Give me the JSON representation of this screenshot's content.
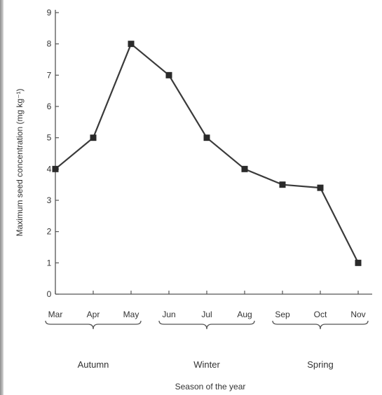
{
  "chart_data": {
    "type": "line",
    "categories": [
      "Mar",
      "Apr",
      "May",
      "Jun",
      "Jul",
      "Aug",
      "Sep",
      "Oct",
      "Nov"
    ],
    "values": [
      4.0,
      5.0,
      8.0,
      7.0,
      5.0,
      4.0,
      3.5,
      3.4,
      1.0
    ],
    "xlabel": "Season of the year",
    "ylabel": "Maximum seed concentration (mg kg⁻¹)",
    "ylim": [
      0,
      9
    ],
    "yticks": [
      0,
      1,
      2,
      3,
      4,
      5,
      6,
      7,
      8,
      9
    ],
    "grid": false,
    "marker": "square",
    "line_color": "#3a3a3a",
    "season_groups": [
      {
        "label": "Autumn",
        "months": [
          "Mar",
          "Apr",
          "May"
        ]
      },
      {
        "label": "Winter",
        "months": [
          "Jun",
          "Jul",
          "Aug"
        ]
      },
      {
        "label": "Spring",
        "months": [
          "Sep",
          "Oct",
          "Nov"
        ]
      }
    ]
  }
}
